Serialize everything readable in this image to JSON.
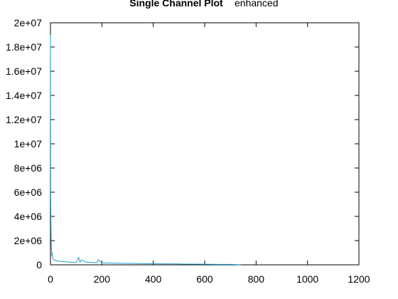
{
  "chart_data": {
    "type": "line",
    "title": "Single Channel Plot",
    "subtitle": "enhanced",
    "xlabel": "",
    "ylabel": "",
    "xlim": [
      0,
      1200
    ],
    "ylim": [
      0,
      20000000
    ],
    "x_ticks": [
      "0",
      "200",
      "400",
      "600",
      "800",
      "1000",
      "1200"
    ],
    "y_ticks": [
      "0",
      "2e+06",
      "4e+06",
      "6e+06",
      "8e+06",
      "1e+07",
      "1.2e+07",
      "1.4e+07",
      "1.6e+07",
      "1.8e+07",
      "2e+07"
    ],
    "grid": false,
    "legend": "none",
    "series": [
      {
        "color": "#1aa0d0",
        "x": [
          0,
          1,
          2,
          3,
          4,
          5,
          6,
          7,
          8,
          10,
          12,
          14,
          16,
          20,
          25,
          30,
          40,
          50,
          60,
          80,
          100,
          110,
          115,
          120,
          140,
          160,
          180,
          185,
          200,
          250,
          300,
          350,
          400,
          450,
          500,
          550,
          600,
          650,
          700,
          720,
          740
        ],
        "y": [
          19000000,
          6000000,
          3000000,
          1800000,
          1200000,
          900000,
          700000,
          1000000,
          600000,
          500000,
          450000,
          400000,
          350000,
          380000,
          320000,
          300000,
          280000,
          260000,
          250000,
          230000,
          200000,
          600000,
          220000,
          400000,
          210000,
          200000,
          180000,
          420000,
          160000,
          140000,
          120000,
          100000,
          90000,
          80000,
          70000,
          60000,
          50000,
          40000,
          35000,
          20000,
          5000
        ]
      }
    ]
  }
}
